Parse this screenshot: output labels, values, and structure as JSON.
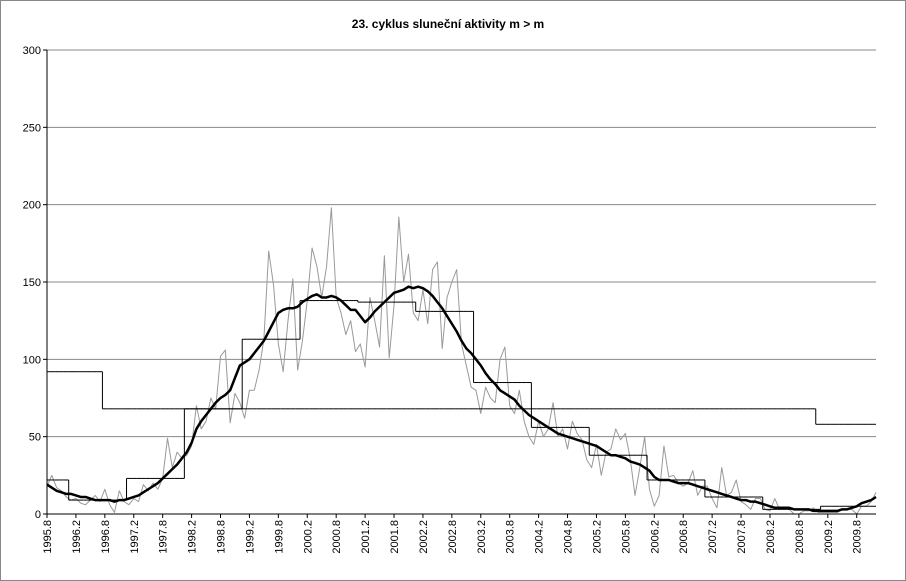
{
  "chart_data": {
    "type": "line",
    "title": "23. cyklus sluneční aktivity  m > m",
    "categories": [
      "1995.8",
      null,
      null,
      null,
      null,
      null,
      "1996.2",
      null,
      null,
      null,
      null,
      null,
      "1996.8",
      null,
      null,
      null,
      null,
      null,
      "1997.2",
      null,
      null,
      null,
      null,
      null,
      "1997.8",
      null,
      null,
      null,
      null,
      null,
      "1998.2",
      null,
      null,
      null,
      null,
      null,
      "1998.8",
      null,
      null,
      null,
      null,
      null,
      "1999.2",
      null,
      null,
      null,
      null,
      null,
      "1999.8",
      null,
      null,
      null,
      null,
      null,
      "2000.2",
      null,
      null,
      null,
      null,
      null,
      "2000.8",
      null,
      null,
      null,
      null,
      null,
      "2001.2",
      null,
      null,
      null,
      null,
      null,
      "2001.8",
      null,
      null,
      null,
      null,
      null,
      "2002.2",
      null,
      null,
      null,
      null,
      null,
      "2002.8",
      null,
      null,
      null,
      null,
      null,
      "2003.2",
      null,
      null,
      null,
      null,
      null,
      "2003.8",
      null,
      null,
      null,
      null,
      null,
      "2004.2",
      null,
      null,
      null,
      null,
      null,
      "2004.8",
      null,
      null,
      null,
      null,
      null,
      "2005.2",
      null,
      null,
      null,
      null,
      null,
      "2005.8",
      null,
      null,
      null,
      null,
      null,
      "2006.2",
      null,
      null,
      null,
      null,
      null,
      "2006.8",
      null,
      null,
      null,
      null,
      null,
      "2007.2",
      null,
      null,
      null,
      null,
      null,
      "2007.8",
      null,
      null,
      null,
      null,
      null,
      "2008.2",
      null,
      null,
      null,
      null,
      null,
      "2008.8",
      null,
      null,
      null,
      null,
      null,
      "2009.2",
      null,
      null,
      null,
      null,
      null,
      "2009.8",
      null,
      null,
      null,
      null
    ],
    "ylim": [
      0,
      300
    ],
    "yticks": [
      0,
      50,
      100,
      150,
      200,
      250,
      300
    ],
    "grid": true,
    "series": [
      {
        "color": "#999999",
        "line_width": 1,
        "step": false,
        "values": [
          18,
          25,
          17,
          15,
          11,
          9,
          10,
          7,
          6,
          9,
          12,
          8,
          16,
          6,
          1,
          15,
          8,
          6,
          10,
          8,
          19,
          15,
          20,
          16,
          23,
          49,
          30,
          40,
          36,
          38,
          44,
          70,
          55,
          60,
          75,
          68,
          102,
          106,
          59,
          78,
          72,
          62,
          80,
          80,
          93,
          113,
          170,
          148,
          110,
          92,
          125,
          152,
          93,
          112,
          138,
          172,
          160,
          140,
          160,
          198,
          140,
          130,
          116,
          125,
          105,
          110,
          95,
          140,
          125,
          108,
          167,
          101,
          135,
          192,
          150,
          168,
          130,
          125,
          145,
          123,
          158,
          163,
          107,
          140,
          150,
          158,
          110,
          96,
          82,
          80,
          65,
          82,
          75,
          72,
          100,
          108,
          70,
          65,
          80,
          60,
          50,
          45,
          60,
          50,
          55,
          72,
          50,
          55,
          42,
          60,
          52,
          48,
          35,
          30,
          45,
          25,
          40,
          42,
          55,
          48,
          52,
          36,
          12,
          30,
          50,
          16,
          5,
          12,
          44,
          24,
          25,
          20,
          18,
          20,
          28,
          12,
          18,
          18,
          10,
          4,
          30,
          12,
          14,
          22,
          8,
          6,
          3,
          10,
          10,
          3,
          2,
          10,
          3,
          4,
          3,
          0,
          0,
          2,
          2,
          4,
          1,
          1,
          1,
          1,
          1,
          3,
          3,
          3,
          0,
          5,
          5,
          8,
          14
        ]
      },
      {
        "color": "#000000",
        "line_width": 1,
        "step": true,
        "values": [
          22,
          22,
          22,
          22,
          22,
          9,
          9,
          9,
          9,
          9,
          9,
          9,
          9,
          9,
          9,
          9,
          9,
          23,
          23,
          23,
          23,
          23,
          23,
          23,
          23,
          23,
          23,
          23,
          23,
          68,
          68,
          68,
          68,
          68,
          68,
          68,
          68,
          68,
          68,
          68,
          68,
          113,
          113,
          113,
          113,
          113,
          113,
          113,
          113,
          113,
          113,
          113,
          113,
          138,
          138,
          138,
          138,
          138,
          138,
          138,
          138,
          138,
          138,
          138,
          138,
          137,
          137,
          137,
          137,
          137,
          137,
          137,
          137,
          137,
          137,
          137,
          137,
          131,
          131,
          131,
          131,
          131,
          131,
          131,
          131,
          131,
          131,
          131,
          131,
          85,
          85,
          85,
          85,
          85,
          85,
          85,
          85,
          85,
          85,
          85,
          85,
          56,
          56,
          56,
          56,
          56,
          56,
          56,
          56,
          56,
          56,
          56,
          56,
          38,
          38,
          38,
          38,
          38,
          38,
          38,
          38,
          38,
          38,
          38,
          38,
          22,
          22,
          22,
          22,
          22,
          22,
          22,
          22,
          22,
          22,
          22,
          22,
          11,
          11,
          11,
          11,
          11,
          11,
          11,
          11,
          11,
          11,
          11,
          11,
          3,
          3,
          3,
          3,
          3,
          3,
          3,
          3,
          3,
          3,
          3,
          3,
          5,
          5,
          5,
          5,
          5,
          5,
          5,
          5,
          5,
          5,
          5,
          5
        ]
      },
      {
        "color": "#000000",
        "line_width": 1,
        "step": true,
        "values": [
          92,
          92,
          92,
          92,
          92,
          92,
          92,
          92,
          92,
          92,
          92,
          92,
          68,
          68,
          68,
          68,
          68,
          68,
          68,
          68,
          68,
          68,
          68,
          68,
          68,
          68,
          68,
          68,
          68,
          68,
          68,
          68,
          68,
          68,
          68,
          68,
          68,
          68,
          68,
          68,
          68,
          68,
          68,
          68,
          68,
          68,
          68,
          68,
          68,
          68,
          68,
          68,
          68,
          68,
          68,
          68,
          68,
          68,
          68,
          68,
          68,
          68,
          68,
          68,
          68,
          68,
          68,
          68,
          68,
          68,
          68,
          68,
          68,
          68,
          68,
          68,
          68,
          68,
          68,
          68,
          68,
          68,
          68,
          68,
          68,
          68,
          68,
          68,
          68,
          68,
          68,
          68,
          68,
          68,
          68,
          68,
          68,
          68,
          68,
          68,
          68,
          68,
          68,
          68,
          68,
          68,
          68,
          68,
          68,
          68,
          68,
          68,
          68,
          68,
          68,
          68,
          68,
          68,
          68,
          68,
          68,
          68,
          68,
          68,
          68,
          68,
          68,
          68,
          68,
          68,
          68,
          68,
          68,
          68,
          68,
          68,
          68,
          68,
          68,
          68,
          68,
          68,
          68,
          68,
          68,
          68,
          68,
          68,
          68,
          68,
          68,
          68,
          68,
          68,
          68,
          68,
          68,
          68,
          68,
          68,
          58,
          58,
          58,
          58,
          58,
          58,
          58,
          58,
          58,
          58,
          58,
          58,
          58
        ]
      },
      {
        "color": "#000000",
        "line_width": 2.5,
        "step": false,
        "values": [
          19,
          17,
          15,
          14,
          13,
          13,
          12,
          11,
          11,
          10,
          9,
          9,
          9,
          9,
          8,
          9,
          9,
          10,
          11,
          12,
          14,
          16,
          18,
          20,
          23,
          26,
          29,
          32,
          36,
          40,
          46,
          55,
          60,
          64,
          68,
          72,
          75,
          77,
          80,
          88,
          96,
          98,
          100,
          104,
          108,
          112,
          118,
          124,
          130,
          132,
          133,
          133,
          134,
          137,
          139,
          141,
          142,
          140,
          140,
          141,
          140,
          138,
          135,
          132,
          132,
          128,
          124,
          127,
          131,
          134,
          137,
          140,
          143,
          144,
          145,
          147,
          146,
          147,
          146,
          144,
          141,
          137,
          133,
          128,
          123,
          118,
          112,
          107,
          104,
          100,
          96,
          91,
          87,
          84,
          80,
          78,
          76,
          74,
          70,
          67,
          64,
          62,
          60,
          58,
          56,
          54,
          52,
          51,
          50,
          49,
          48,
          47,
          46,
          45,
          44,
          42,
          40,
          38,
          38,
          37,
          36,
          34,
          33,
          32,
          30,
          28,
          24,
          22,
          22,
          22,
          21,
          20,
          20,
          20,
          19,
          18,
          17,
          16,
          15,
          14,
          13,
          12,
          11,
          10,
          9,
          9,
          8,
          8,
          7,
          6,
          5,
          4,
          4,
          4,
          4,
          3,
          3,
          3,
          3,
          2,
          2,
          2,
          2,
          2,
          2,
          3,
          3,
          4,
          5,
          7,
          8,
          9,
          11
        ]
      }
    ]
  }
}
